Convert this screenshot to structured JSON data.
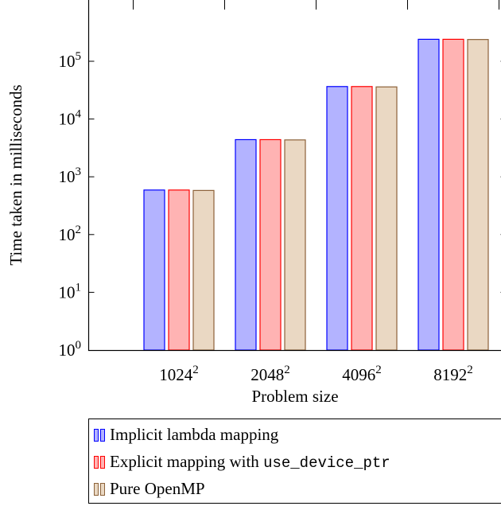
{
  "chart_data": {
    "type": "bar",
    "scale": "log",
    "xlabel": "Problem size",
    "ylabel": "Time taken in milliseconds",
    "categories": [
      {
        "base": "1024",
        "exp": "2"
      },
      {
        "base": "2048",
        "exp": "2"
      },
      {
        "base": "4096",
        "exp": "2"
      },
      {
        "base": "8192",
        "exp": "2"
      }
    ],
    "yticks": [
      {
        "base": "10",
        "exp": "0",
        "value": 1
      },
      {
        "base": "10",
        "exp": "1",
        "value": 10
      },
      {
        "base": "10",
        "exp": "2",
        "value": 100
      },
      {
        "base": "10",
        "exp": "3",
        "value": 1000
      },
      {
        "base": "10",
        "exp": "4",
        "value": 10000
      },
      {
        "base": "10",
        "exp": "5",
        "value": 100000
      }
    ],
    "ylim": [
      1,
      1000000
    ],
    "series": [
      {
        "name": "Implicit lambda mapping",
        "fill": "#b3b3ff",
        "stroke": "#0000ff",
        "values": [
          590,
          4400,
          36500,
          240000
        ]
      },
      {
        "name_prefix": "Explicit mapping with ",
        "name_code": "use_device_ptr",
        "fill": "#ffb3b3",
        "stroke": "#ff0000",
        "values": [
          590,
          4400,
          36500,
          240000
        ]
      },
      {
        "name": "Pure OpenMP",
        "fill": "#ead8c3",
        "stroke": "#8c6239",
        "values": [
          580,
          4350,
          36000,
          238000
        ]
      }
    ]
  }
}
